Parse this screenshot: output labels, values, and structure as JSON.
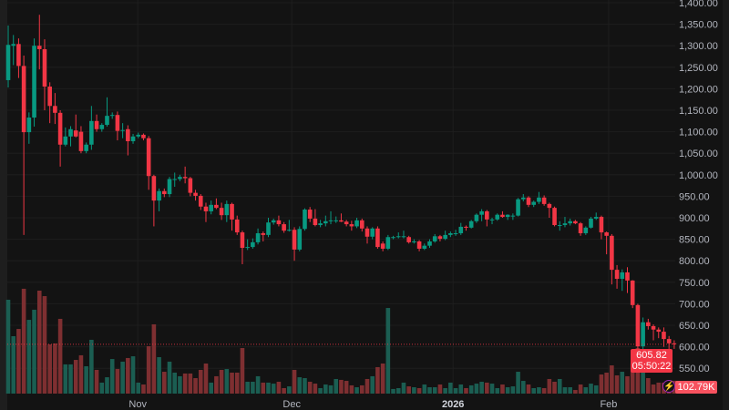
{
  "colors": {
    "up": "#089981",
    "down": "#f23645",
    "volume_up": "#1b5e52",
    "volume_down": "#7e2f31",
    "background": "#131313",
    "last_price_line": "#f23645"
  },
  "chart_data": {
    "type": "candlestick",
    "title": "",
    "ylim": [
      550,
      1400
    ],
    "y_ticks": [
      "1,400.00",
      "1,350.00",
      "1,300.00",
      "1,250.00",
      "1,200.00",
      "1,150.00",
      "1,100.00",
      "1,050.00",
      "1,000.00",
      "950.00",
      "900.00",
      "850.00",
      "800.00",
      "750.00",
      "700.00",
      "650.00",
      "600.00",
      "550.00"
    ],
    "y_tick_values": [
      1400,
      1350,
      1300,
      1250,
      1200,
      1150,
      1100,
      1050,
      1000,
      950,
      900,
      850,
      800,
      750,
      700,
      650,
      600,
      550
    ],
    "x_ticks": [
      "Nov",
      "Dec",
      "2026",
      "Feb"
    ],
    "grid": true,
    "last_price": "605.82",
    "countdown": "05:50:22",
    "last_volume": "102.79K",
    "ohlc": [
      [
        1220,
        1347,
        1203,
        1302
      ],
      [
        1300,
        1325,
        1255,
        1304
      ],
      [
        1304,
        1317,
        1225,
        1253
      ],
      [
        1253,
        1277,
        860,
        1099
      ],
      [
        1099,
        1145,
        1072,
        1133
      ],
      [
        1133,
        1317,
        1112,
        1300
      ],
      [
        1300,
        1372,
        1245,
        1292
      ],
      [
        1292,
        1315,
        1150,
        1205
      ],
      [
        1205,
        1215,
        1120,
        1160
      ],
      [
        1160,
        1190,
        1118,
        1144
      ],
      [
        1144,
        1150,
        1019,
        1070
      ],
      [
        1070,
        1110,
        1066,
        1089
      ],
      [
        1089,
        1113,
        1066,
        1106
      ],
      [
        1103,
        1140,
        1087,
        1089
      ],
      [
        1100,
        1113,
        1050,
        1055
      ],
      [
        1055,
        1075,
        1050,
        1070
      ],
      [
        1070,
        1160,
        1058,
        1125
      ],
      [
        1125,
        1140,
        1100,
        1106
      ],
      [
        1106,
        1120,
        1100,
        1116
      ],
      [
        1116,
        1180,
        1112,
        1137
      ],
      [
        1137,
        1145,
        1130,
        1139
      ],
      [
        1139,
        1147,
        1080,
        1102
      ],
      [
        1102,
        1120,
        1085,
        1104
      ],
      [
        1106,
        1115,
        1045,
        1078
      ],
      [
        1078,
        1095,
        1072,
        1089
      ],
      [
        1089,
        1098,
        1085,
        1093
      ],
      [
        1093,
        1096,
        1080,
        1085
      ],
      [
        1085,
        1090,
        965,
        997
      ],
      [
        997,
        1000,
        880,
        940
      ],
      [
        940,
        968,
        915,
        962
      ],
      [
        962,
        968,
        948,
        955
      ],
      [
        955,
        995,
        948,
        990
      ],
      [
        990,
        1005,
        972,
        990
      ],
      [
        990,
        1000,
        985,
        995
      ],
      [
        995,
        1019,
        980,
        992
      ],
      [
        992,
        995,
        950,
        958
      ],
      [
        958,
        965,
        940,
        951
      ],
      [
        951,
        955,
        918,
        926
      ],
      [
        926,
        935,
        890,
        915
      ],
      [
        915,
        940,
        908,
        930
      ],
      [
        930,
        945,
        920,
        923
      ],
      [
        923,
        935,
        895,
        906
      ],
      [
        906,
        940,
        890,
        932
      ],
      [
        932,
        935,
        870,
        896
      ],
      [
        896,
        905,
        860,
        866
      ],
      [
        866,
        870,
        792,
        830
      ],
      [
        830,
        850,
        825,
        832
      ],
      [
        832,
        852,
        828,
        843
      ],
      [
        843,
        875,
        838,
        864
      ],
      [
        864,
        868,
        845,
        860
      ],
      [
        860,
        900,
        855,
        889
      ],
      [
        889,
        898,
        884,
        894
      ],
      [
        894,
        905,
        880,
        885
      ],
      [
        885,
        890,
        865,
        870
      ],
      [
        870,
        895,
        868,
        872
      ],
      [
        872,
        878,
        800,
        826
      ],
      [
        826,
        880,
        822,
        874
      ],
      [
        874,
        922,
        870,
        919
      ],
      [
        919,
        925,
        890,
        898
      ],
      [
        898,
        920,
        880,
        883
      ],
      [
        883,
        895,
        878,
        887
      ],
      [
        887,
        905,
        880,
        892
      ],
      [
        892,
        915,
        885,
        894
      ],
      [
        894,
        903,
        888,
        894
      ],
      [
        894,
        910,
        890,
        891
      ],
      [
        891,
        895,
        880,
        885
      ],
      [
        885,
        893,
        870,
        880
      ],
      [
        880,
        900,
        876,
        894
      ],
      [
        894,
        898,
        868,
        875
      ],
      [
        875,
        880,
        840,
        856
      ],
      [
        856,
        878,
        850,
        875
      ],
      [
        875,
        880,
        828,
        832
      ],
      [
        840,
        845,
        822,
        828
      ],
      [
        828,
        860,
        825,
        855
      ],
      [
        855,
        858,
        850,
        855
      ],
      [
        855,
        866,
        852,
        857
      ],
      [
        857,
        870,
        852,
        857
      ],
      [
        855,
        858,
        840,
        843
      ],
      [
        843,
        850,
        840,
        845
      ],
      [
        845,
        848,
        822,
        828
      ],
      [
        828,
        840,
        825,
        835
      ],
      [
        835,
        850,
        830,
        845
      ],
      [
        845,
        862,
        842,
        857
      ],
      [
        857,
        860,
        845,
        851
      ],
      [
        851,
        870,
        848,
        860
      ],
      [
        860,
        868,
        855,
        864
      ],
      [
        864,
        872,
        858,
        864
      ],
      [
        864,
        888,
        860,
        879
      ],
      [
        879,
        882,
        870,
        877
      ],
      [
        877,
        895,
        875,
        892
      ],
      [
        892,
        910,
        888,
        907
      ],
      [
        907,
        920,
        892,
        915
      ],
      [
        915,
        918,
        880,
        896
      ],
      [
        896,
        900,
        885,
        896
      ],
      [
        896,
        910,
        893,
        907
      ],
      [
        907,
        915,
        900,
        902
      ],
      [
        902,
        908,
        895,
        907
      ],
      [
        905,
        910,
        895,
        905
      ],
      [
        905,
        946,
        903,
        943
      ],
      [
        943,
        955,
        938,
        947
      ],
      [
        947,
        950,
        925,
        930
      ],
      [
        930,
        940,
        925,
        937
      ],
      [
        937,
        960,
        932,
        947
      ],
      [
        947,
        952,
        928,
        932
      ],
      [
        932,
        935,
        900,
        923
      ],
      [
        923,
        926,
        880,
        883
      ],
      [
        883,
        892,
        870,
        883
      ],
      [
        883,
        902,
        878,
        887
      ],
      [
        887,
        898,
        882,
        892
      ],
      [
        892,
        895,
        885,
        887
      ],
      [
        887,
        890,
        858,
        864
      ],
      [
        864,
        880,
        860,
        877
      ],
      [
        877,
        902,
        875,
        898
      ],
      [
        898,
        912,
        895,
        902
      ],
      [
        902,
        905,
        850,
        866
      ],
      [
        866,
        868,
        815,
        858
      ],
      [
        858,
        862,
        745,
        779
      ],
      [
        779,
        790,
        735,
        758
      ],
      [
        758,
        780,
        730,
        773
      ],
      [
        773,
        785,
        725,
        754
      ],
      [
        754,
        755,
        690,
        697
      ],
      [
        697,
        700,
        560,
        601
      ],
      [
        601,
        668,
        585,
        657
      ],
      [
        657,
        665,
        640,
        648
      ],
      [
        648,
        652,
        615,
        640
      ],
      [
        640,
        645,
        620,
        635
      ],
      [
        635,
        645,
        600,
        618
      ],
      [
        618,
        625,
        585,
        608
      ],
      [
        608,
        615,
        595,
        605.82
      ]
    ],
    "volume_k": [
      752,
      460,
      518,
      840,
      591,
      672,
      825,
      781,
      394,
      402,
      599,
      234,
      234,
      270,
      307,
      219,
      431,
      190,
      88,
      131,
      277,
      197,
      256,
      285,
      299,
      88,
      73,
      380,
      555,
      292,
      175,
      256,
      168,
      139,
      161,
      161,
      124,
      190,
      241,
      88,
      139,
      190,
      197,
      168,
      168,
      365,
      95,
      95,
      139,
      88,
      88,
      80,
      95,
      44,
      58,
      190,
      131,
      124,
      95,
      80,
      44,
      73,
      66,
      117,
      110,
      102,
      66,
      51,
      66,
      117,
      139,
      212,
      241,
      686,
      37,
      44,
      88,
      58,
      51,
      44,
      73,
      51,
      51,
      73,
      44,
      88,
      44,
      73,
      44,
      66,
      80,
      95,
      88,
      80,
      44,
      73,
      51,
      58,
      175,
      102,
      73,
      44,
      51,
      44,
      117,
      95,
      117,
      51,
      51,
      29,
      73,
      51,
      80,
      66,
      153,
      168,
      226,
      146,
      175,
      139,
      241,
      365,
      329,
      124,
      73,
      88,
      88,
      102,
      102.79
    ]
  }
}
